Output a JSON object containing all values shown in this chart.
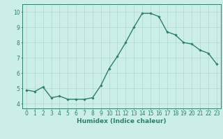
{
  "x": [
    0,
    1,
    2,
    3,
    4,
    5,
    6,
    7,
    8,
    9,
    10,
    11,
    12,
    13,
    14,
    15,
    16,
    17,
    18,
    19,
    20,
    21,
    22,
    23
  ],
  "y": [
    4.9,
    4.8,
    5.1,
    4.4,
    4.5,
    4.3,
    4.3,
    4.3,
    4.4,
    5.2,
    6.3,
    7.1,
    8.0,
    9.0,
    9.9,
    9.9,
    9.7,
    8.7,
    8.5,
    8.0,
    7.9,
    7.5,
    7.3,
    6.6
  ],
  "line_color": "#2e7d6e",
  "marker": "D",
  "marker_size": 1.8,
  "line_width": 1.0,
  "bg_color": "#cceee8",
  "grid_color": "#b0d8d2",
  "xlabel": "Humidex (Indice chaleur)",
  "xlabel_fontsize": 6.5,
  "tick_fontsize": 5.5,
  "ylim": [
    3.7,
    10.5
  ],
  "xlim": [
    -0.5,
    23.5
  ],
  "yticks": [
    4,
    5,
    6,
    7,
    8,
    9,
    10
  ],
  "xticks": [
    0,
    1,
    2,
    3,
    4,
    5,
    6,
    7,
    8,
    9,
    10,
    11,
    12,
    13,
    14,
    15,
    16,
    17,
    18,
    19,
    20,
    21,
    22,
    23
  ]
}
